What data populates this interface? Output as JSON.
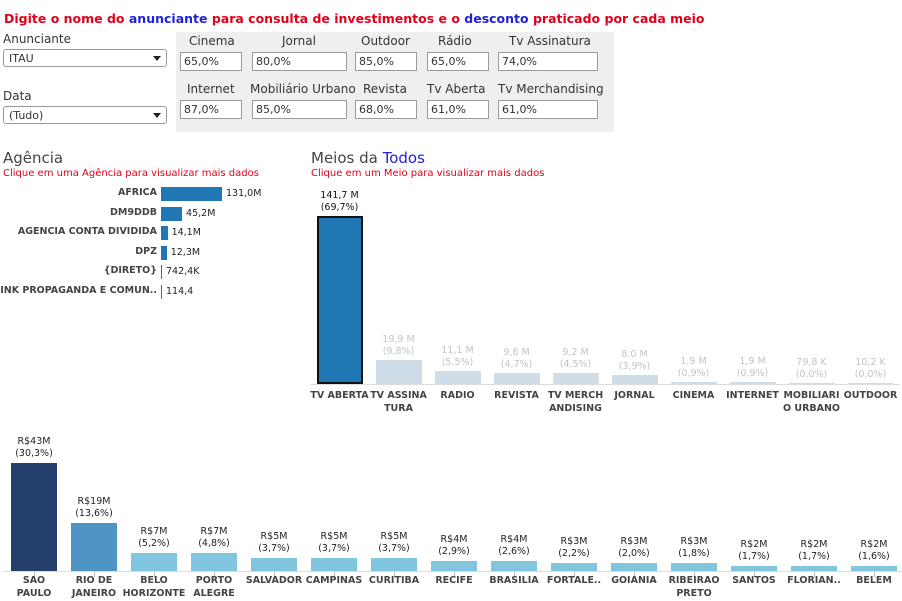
{
  "header": {
    "part1": "Digite o nome do ",
    "word_anunciante": "anunciante",
    "part2": " para consulta de investimentos e o ",
    "word_desconto": "desconto",
    "part3": " praticado por cada meio"
  },
  "filters": {
    "anunciante_label": "Anunciante",
    "anunciante_value": "ITAU",
    "data_label": "Data",
    "data_value": "(Tudo)"
  },
  "discounts": [
    {
      "label": "Cinema",
      "value": "65,0%"
    },
    {
      "label": "Jornal",
      "value": "80,0%"
    },
    {
      "label": "Outdoor",
      "value": "85,0%"
    },
    {
      "label": "Rádio",
      "value": "65,0%"
    },
    {
      "label": "Tv Assinatura",
      "value": "74,0%"
    },
    {
      "label": "Internet",
      "value": "87,0%"
    },
    {
      "label": "Mobiliário Urbano",
      "value": "85,0%"
    },
    {
      "label": "Revista",
      "value": "68,0%"
    },
    {
      "label": "Tv Aberta",
      "value": "61,0%"
    },
    {
      "label": "Tv Merchandising",
      "value": "61,0%"
    }
  ],
  "agencia": {
    "title": "Agência",
    "hint": "Clique em uma Agência para visualizar mais dados"
  },
  "meios": {
    "title_prefix": "Meios da ",
    "title_highlight": "Todos",
    "hint": "Clique em um Meio para visualizar mais dados"
  },
  "colors": {
    "accent_red": "#e0001a",
    "accent_blue": "#1f22d6",
    "bar_blue": "#1f77b4",
    "bar_faded": "#cfdde8",
    "city_dark": "#243f6b",
    "city_mid": "#4e95c5",
    "city_light": "#82c5de"
  },
  "chart_data": [
    {
      "type": "bar",
      "orientation": "horizontal",
      "categories": [
        "AFRICA",
        "DM9DDB",
        "AGENCIA CONTA DIVIDIDA",
        "DPZ",
        "{DIRETO}",
        "LINK PROPAGANDA E COMUN.."
      ],
      "values": [
        131000000,
        45200000,
        14100000,
        12300000,
        742400,
        114.4
      ],
      "labels": [
        "131,0M",
        "45,2M",
        "14,1M",
        "12,3M",
        "742,4K",
        "114,4"
      ]
    },
    {
      "type": "bar",
      "categories": [
        "TV ABERTA",
        "TV ASSINATURA",
        "RADIO",
        "REVISTA",
        "TV MERCHANDISING",
        "JORNAL",
        "CINEMA",
        "INTERNET",
        "MOBILIARIO URBANO",
        "OUTDOOR"
      ],
      "category_labels": [
        [
          "TV ABERTA"
        ],
        [
          "TV ASSINA",
          "TURA"
        ],
        [
          "RADIO"
        ],
        [
          "REVISTA"
        ],
        [
          "TV MERCH",
          "ANDISING"
        ],
        [
          "JORNAL"
        ],
        [
          "CINEMA"
        ],
        [
          "INTERNET"
        ],
        [
          "MOBILIARI",
          "O URBANO"
        ],
        [
          "OUTDOOR"
        ]
      ],
      "values": [
        141.7,
        19.9,
        11.1,
        9.6,
        9.2,
        8.0,
        1.9,
        1.9,
        0.0798,
        0.0102
      ],
      "unit": "M",
      "value_labels": [
        "141,7 M",
        "19,9 M",
        "11,1 M",
        "9,6 M",
        "9,2 M",
        "8,0 M",
        "1,9 M",
        "1,9 M",
        "79,8 K",
        "10,2 K"
      ],
      "pct_labels": [
        "(69,7%)",
        "(9,8%)",
        "(5,5%)",
        "(4,7%)",
        "(4,5%)",
        "(3,9%)",
        "(0,9%)",
        "(0,9%)",
        "(0,0%)",
        "(0,0%)"
      ],
      "selected": "TV ABERTA"
    },
    {
      "type": "bar",
      "categories": [
        "SAO PAULO",
        "RIO DE JANEIRO",
        "BELO HORIZONTE",
        "PORTO ALEGRE",
        "SALVADOR",
        "CAMPINAS",
        "CURITIBA",
        "RECIFE",
        "BRASILIA",
        "FORTALE..",
        "GOIANIA",
        "RIBEIRAO PRETO",
        "SANTOS",
        "FLORIAN..",
        "BELEM"
      ],
      "category_labels": [
        [
          "SAO",
          "PAULO"
        ],
        [
          "RIO DE",
          "JANEIRO"
        ],
        [
          "BELO",
          "HORIZONTE"
        ],
        [
          "PORTO",
          "ALEGRE"
        ],
        [
          "SALVADOR"
        ],
        [
          "CAMPINAS"
        ],
        [
          "CURITIBA"
        ],
        [
          "RECIFE"
        ],
        [
          "BRASILIA"
        ],
        [
          "FORTALE.."
        ],
        [
          "GOIANIA"
        ],
        [
          "RIBEIRAO",
          "PRETO"
        ],
        [
          "SANTOS"
        ],
        [
          "FLORIAN.."
        ],
        [
          "BELEM"
        ]
      ],
      "values": [
        43,
        19,
        7,
        7,
        5,
        5,
        5,
        4,
        4,
        3,
        3,
        3,
        2,
        2,
        2
      ],
      "pcts": [
        30.3,
        13.6,
        5.2,
        4.8,
        3.7,
        3.7,
        3.7,
        2.9,
        2.6,
        2.2,
        2.0,
        1.8,
        1.7,
        1.7,
        1.6
      ],
      "value_labels": [
        "R$43M",
        "R$19M",
        "R$7M",
        "R$7M",
        "R$5M",
        "R$5M",
        "R$5M",
        "R$4M",
        "R$4M",
        "R$3M",
        "R$3M",
        "R$3M",
        "R$2M",
        "R$2M",
        "R$2M"
      ],
      "pct_labels": [
        "(30,3%)",
        "(13,6%)",
        "(5,2%)",
        "(4,8%)",
        "(3,7%)",
        "(3,7%)",
        "(3,7%)",
        "(2,9%)",
        "(2,6%)",
        "(2,2%)",
        "(2,0%)",
        "(1,8%)",
        "(1,7%)",
        "(1,7%)",
        "(1,6%)"
      ]
    }
  ]
}
